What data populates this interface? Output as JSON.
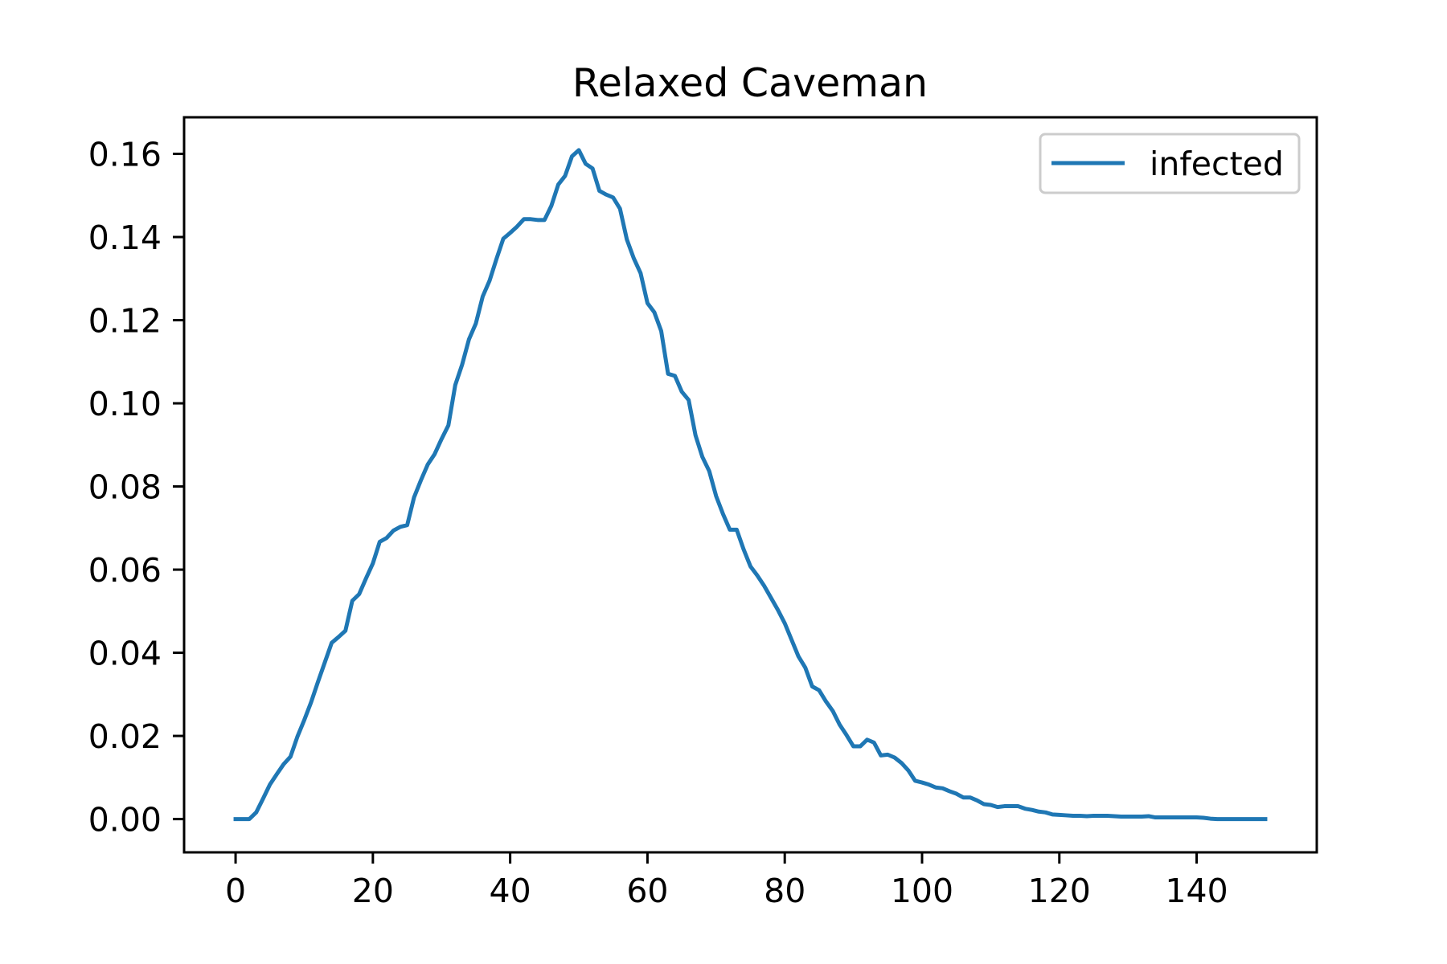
{
  "chart_data": {
    "type": "line",
    "title": "Relaxed Caveman",
    "x": [
      0,
      1,
      2,
      3,
      4,
      5,
      6,
      7,
      8,
      9,
      10,
      11,
      12,
      13,
      14,
      15,
      16,
      17,
      18,
      19,
      20,
      21,
      22,
      23,
      24,
      25,
      26,
      27,
      28,
      29,
      30,
      31,
      32,
      33,
      34,
      35,
      36,
      37,
      38,
      39,
      40,
      41,
      42,
      43,
      44,
      45,
      46,
      47,
      48,
      49,
      50,
      51,
      52,
      53,
      54,
      55,
      56,
      57,
      58,
      59,
      60,
      61,
      62,
      63,
      64,
      65,
      66,
      67,
      68,
      69,
      70,
      71,
      72,
      73,
      74,
      75,
      76,
      77,
      78,
      79,
      80,
      81,
      82,
      83,
      84,
      85,
      86,
      87,
      88,
      89,
      90,
      91,
      92,
      93,
      94,
      95,
      96,
      97,
      98,
      99,
      100,
      101,
      102,
      103,
      104,
      105,
      106,
      107,
      108,
      109,
      110,
      111,
      112,
      113,
      114,
      115,
      116,
      117,
      118,
      119,
      120,
      121,
      122,
      123,
      124,
      125,
      126,
      127,
      128,
      129,
      130,
      131,
      132,
      133,
      134,
      135,
      136,
      137,
      138,
      139,
      140,
      141,
      142,
      143,
      144,
      145,
      146,
      147,
      148,
      149,
      150
    ],
    "series": [
      {
        "name": "infected",
        "color": "#1f77b4",
        "values": [
          0,
          0,
          0,
          0.0016,
          0.0049,
          0.0083,
          0.0108,
          0.0132,
          0.015,
          0.0198,
          0.0238,
          0.0281,
          0.033,
          0.0377,
          0.0424,
          0.0438,
          0.0453,
          0.0525,
          0.0541,
          0.0579,
          0.0615,
          0.0667,
          0.0676,
          0.0694,
          0.0703,
          0.0707,
          0.0774,
          0.0815,
          0.0853,
          0.0878,
          0.0914,
          0.0947,
          0.1044,
          0.1093,
          0.1154,
          0.1192,
          0.1257,
          0.1295,
          0.1347,
          0.1396,
          0.141,
          0.1425,
          0.1443,
          0.1443,
          0.1441,
          0.1441,
          0.1475,
          0.1526,
          0.1547,
          0.1594,
          0.1609,
          0.1576,
          0.1565,
          0.1511,
          0.1502,
          0.1495,
          0.1468,
          0.1394,
          0.1349,
          0.1313,
          0.1241,
          0.1219,
          0.1174,
          0.1071,
          0.1066,
          0.1028,
          0.1008,
          0.0923,
          0.0871,
          0.0837,
          0.0777,
          0.0734,
          0.0696,
          0.0696,
          0.0649,
          0.0608,
          0.0586,
          0.0561,
          0.0532,
          0.0503,
          0.0471,
          0.0431,
          0.0391,
          0.0364,
          0.0319,
          0.031,
          0.0283,
          0.026,
          0.0227,
          0.0202,
          0.0175,
          0.0175,
          0.0191,
          0.0184,
          0.0153,
          0.0155,
          0.0148,
          0.0135,
          0.0117,
          0.0092,
          0.0088,
          0.0083,
          0.0076,
          0.0074,
          0.0067,
          0.0061,
          0.0052,
          0.0052,
          0.0045,
          0.0036,
          0.0034,
          0.0029,
          0.0031,
          0.0031,
          0.0031,
          0.0025,
          0.0022,
          0.0018,
          0.0016,
          0.0011,
          0.001,
          0.0009,
          0.0008,
          0.0008,
          0.0007,
          0.0008,
          0.0008,
          0.0008,
          0.0007,
          0.0006,
          0.0006,
          0.0006,
          0.0006,
          0.0007,
          0.0004,
          0.0004,
          0.0004,
          0.0004,
          0.0004,
          0.0004,
          0.0004,
          0.0003,
          0.0001,
          0,
          0,
          0,
          0,
          0,
          0,
          0,
          0
        ]
      }
    ],
    "xlim": [
      -7.5,
      157.5
    ],
    "xticks": [
      0,
      20,
      40,
      60,
      80,
      100,
      120,
      140
    ],
    "ylim": [
      -0.008,
      0.1688
    ],
    "yticks": [
      {
        "value": 0,
        "label": "0.00"
      },
      0.02,
      0.04,
      0.06,
      0.08,
      {
        "value": 0.1,
        "label": "0.10"
      },
      0.12,
      0.14,
      0.16
    ],
    "legend": "upper right"
  }
}
